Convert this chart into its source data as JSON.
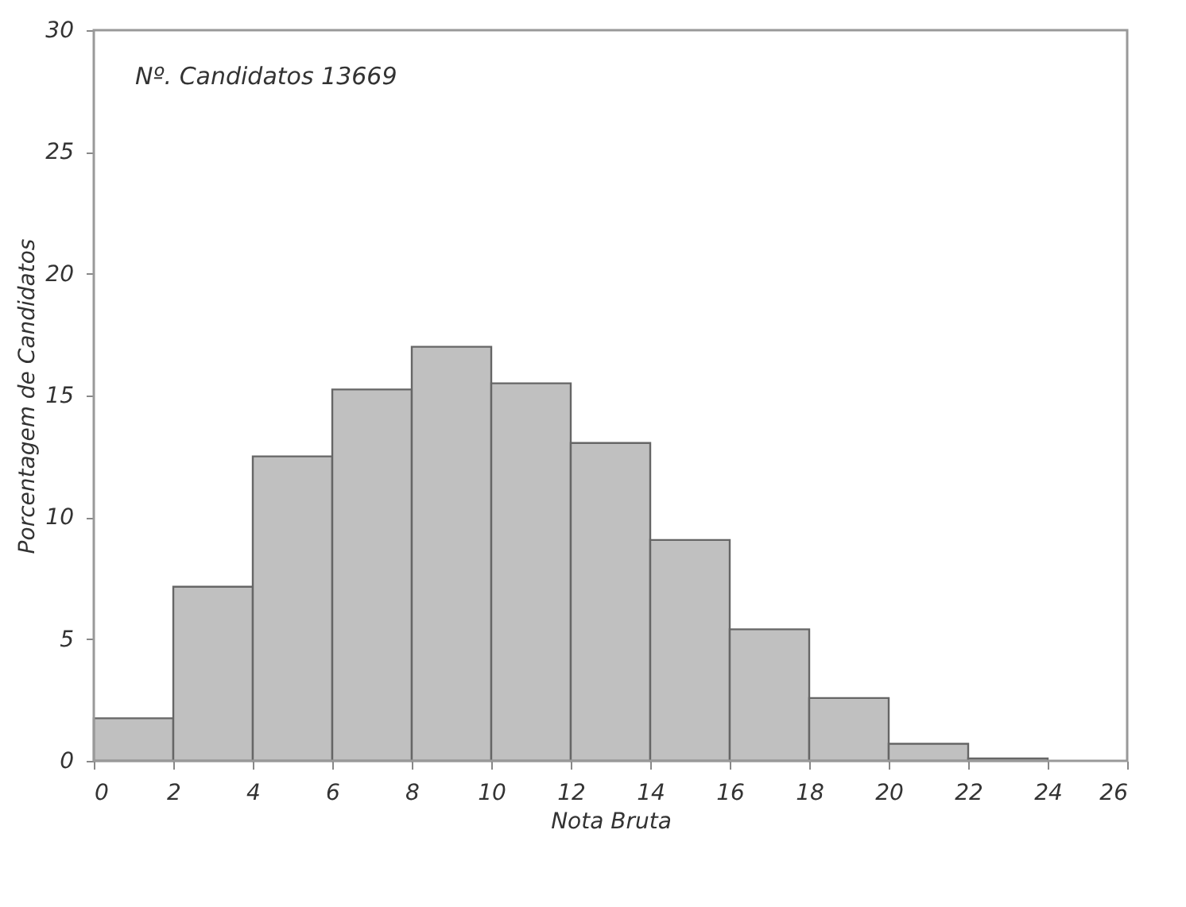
{
  "chart_data": {
    "type": "histogram",
    "xlabel": "Nota Bruta",
    "ylabel": "Porcentagem de Candidatos",
    "bins": [
      0,
      2,
      4,
      6,
      8,
      10,
      12,
      14,
      16,
      18,
      20,
      22,
      24
    ],
    "values": [
      1.75,
      7.15,
      12.5,
      15.25,
      17.0,
      15.5,
      13.05,
      9.07,
      5.4,
      2.58,
      0.7,
      0.1
    ],
    "color": "#c0c0c0",
    "xlim": [
      0,
      26
    ],
    "xticks": [
      0,
      2,
      4,
      6,
      8,
      10,
      12,
      14,
      16,
      18,
      20,
      22,
      24,
      26
    ],
    "ylim": [
      0,
      30
    ],
    "yticks": [
      0,
      5,
      10,
      15,
      20,
      25,
      30
    ],
    "grid": false,
    "annotations": [
      "Nº. Candidatos 13669"
    ]
  }
}
